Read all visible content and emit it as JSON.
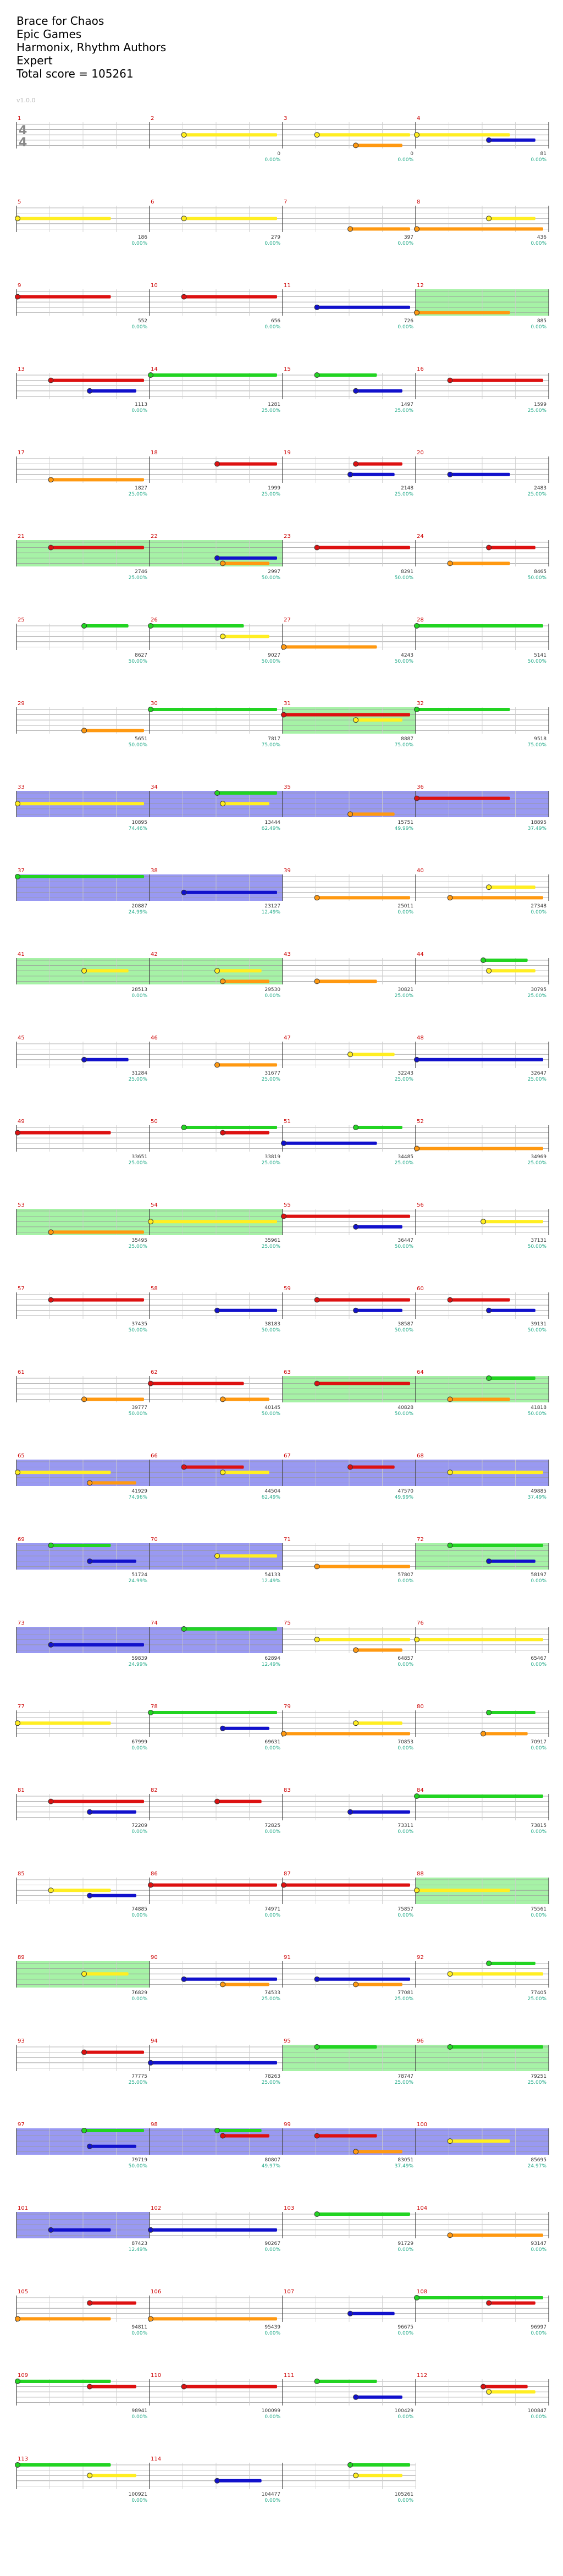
{
  "header": {
    "title": "Brace for Chaos",
    "artist": "Epic Games",
    "charter": "Harmonix, Rhythm Authors",
    "difficulty": "Expert",
    "total_score": "Total score = 105261"
  },
  "version": "v1.0.0",
  "time_signature": {
    "top": "4",
    "bottom": "4"
  },
  "colors": {
    "green": "#22d422",
    "red": "#dd1111",
    "yellow": "#ffee22",
    "blue": "#1111cc",
    "orange": "#ff9911",
    "od_phrase": "#88ee88",
    "solo": "#7777ee",
    "staff": "#999999",
    "measure_num": "#cc0000",
    "score": "#333333",
    "pct": "#22aa88"
  },
  "measures": [
    {
      "n": "1",
      "cnt": "",
      "score": "",
      "pct": "",
      "hi": null
    },
    {
      "n": "2",
      "cnt": "",
      "score": "0",
      "pct": "0.00%",
      "hi": null
    },
    {
      "n": "3",
      "cnt": "",
      "score": "0",
      "pct": "0.00%",
      "hi": null
    },
    {
      "n": "4",
      "cnt": "61",
      "score": "81",
      "pct": "0.00%",
      "hi": null
    },
    {
      "n": "5",
      "cnt": "",
      "score": "186",
      "pct": "0.00%",
      "hi": null
    },
    {
      "n": "6",
      "cnt": "",
      "score": "279",
      "pct": "0.00%",
      "hi": null
    },
    {
      "n": "7",
      "cnt": "",
      "score": "397",
      "pct": "0.00%",
      "hi": null
    },
    {
      "n": "8",
      "cnt": "",
      "score": "436",
      "pct": "0.00%",
      "hi": null
    },
    {
      "n": "9",
      "cnt": "",
      "score": "552",
      "pct": "0.00%",
      "hi": null
    },
    {
      "n": "10",
      "cnt": "",
      "score": "656",
      "pct": "0.00%",
      "hi": null
    },
    {
      "n": "11",
      "cnt": "",
      "score": "726",
      "pct": "0.00%",
      "hi": null
    },
    {
      "n": "12",
      "cnt": "",
      "score": "885",
      "pct": "0.00%",
      "hi": "od"
    },
    {
      "n": "13",
      "cnt": "",
      "score": "1113",
      "pct": "0.00%",
      "hi": null
    },
    {
      "n": "14",
      "cnt": "",
      "score": "1281",
      "pct": "25.00%",
      "hi": null
    },
    {
      "n": "15",
      "cnt": "",
      "score": "1497",
      "pct": "25.00%",
      "hi": null
    },
    {
      "n": "16",
      "cnt": "",
      "score": "1599",
      "pct": "25.00%",
      "hi": null
    },
    {
      "n": "17",
      "cnt": "",
      "score": "1827",
      "pct": "25.00%",
      "hi": null
    },
    {
      "n": "18",
      "cnt": "",
      "score": "1999",
      "pct": "25.00%",
      "hi": null
    },
    {
      "n": "19",
      "cnt": "",
      "score": "2148",
      "pct": "25.00%",
      "hi": null
    },
    {
      "n": "20",
      "cnt": "",
      "score": "2483",
      "pct": "25.00%",
      "hi": null
    },
    {
      "n": "21",
      "cnt": "",
      "score": "2746",
      "pct": "25.00%",
      "hi": "od"
    },
    {
      "n": "22",
      "cnt": "",
      "score": "2997",
      "pct": "50.00%",
      "hi": "od"
    },
    {
      "n": "23",
      "cnt": "",
      "score": "8291",
      "pct": "50.00%",
      "hi": null
    },
    {
      "n": "24",
      "cnt": "",
      "score": "8465",
      "pct": "50.00%",
      "hi": null
    },
    {
      "n": "25",
      "cnt": "",
      "score": "8627",
      "pct": "50.00%",
      "hi": null
    },
    {
      "n": "26",
      "cnt": "",
      "score": "9027",
      "pct": "50.00%",
      "hi": null
    },
    {
      "n": "27",
      "cnt": "",
      "score": "4243",
      "pct": "50.00%",
      "hi": null
    },
    {
      "n": "28",
      "cnt": "",
      "score": "5141",
      "pct": "50.00%",
      "hi": null
    },
    {
      "n": "29",
      "cnt": "",
      "score": "5651",
      "pct": "50.00%",
      "hi": null
    },
    {
      "n": "30",
      "cnt": "",
      "score": "7817",
      "pct": "75.00%",
      "hi": null
    },
    {
      "n": "31",
      "cnt": "",
      "score": "8887",
      "pct": "75.00%",
      "hi": "od"
    },
    {
      "n": "32",
      "cnt": "",
      "score": "9518",
      "pct": "75.00%",
      "hi": null
    },
    {
      "n": "33",
      "cnt": "",
      "score": "10895",
      "pct": "74.46%",
      "hi": "solo"
    },
    {
      "n": "34",
      "cnt": "",
      "score": "13444",
      "pct": "62.49%",
      "hi": "solo"
    },
    {
      "n": "35",
      "cnt": "",
      "score": "15751",
      "pct": "49.99%",
      "hi": "solo"
    },
    {
      "n": "36",
      "cnt": "",
      "score": "18895",
      "pct": "37.49%",
      "hi": "solo"
    },
    {
      "n": "37",
      "cnt": "",
      "score": "20887",
      "pct": "24.99%",
      "hi": "solo"
    },
    {
      "n": "38",
      "cnt": "",
      "score": "23127",
      "pct": "12.49%",
      "hi": "solo"
    },
    {
      "n": "39",
      "cnt": "",
      "score": "25011",
      "pct": "0.00%",
      "hi": null
    },
    {
      "n": "40",
      "cnt": "",
      "score": "27348",
      "pct": "0.00%",
      "hi": null
    },
    {
      "n": "41",
      "cnt": "",
      "score": "28513",
      "pct": "0.00%",
      "hi": "od"
    },
    {
      "n": "42",
      "cnt": "",
      "score": "29530",
      "pct": "0.00%",
      "hi": "od"
    },
    {
      "n": "43",
      "cnt": "",
      "score": "30821",
      "pct": "25.00%",
      "hi": null
    },
    {
      "n": "44",
      "cnt": "",
      "score": "30795",
      "pct": "25.00%",
      "hi": null
    },
    {
      "n": "45",
      "cnt": "",
      "score": "31284",
      "pct": "25.00%",
      "hi": null
    },
    {
      "n": "46",
      "cnt": "",
      "score": "31677",
      "pct": "25.00%",
      "hi": null
    },
    {
      "n": "47",
      "cnt": "",
      "score": "32243",
      "pct": "25.00%",
      "hi": null
    },
    {
      "n": "48",
      "cnt": "",
      "score": "32647",
      "pct": "25.00%",
      "hi": null
    },
    {
      "n": "49",
      "cnt": "",
      "score": "33651",
      "pct": "25.00%",
      "hi": null
    },
    {
      "n": "50",
      "cnt": "",
      "score": "33819",
      "pct": "25.00%",
      "hi": null
    },
    {
      "n": "51",
      "cnt": "",
      "score": "34485",
      "pct": "25.00%",
      "hi": null
    },
    {
      "n": "52",
      "cnt": "",
      "score": "34969",
      "pct": "25.00%",
      "hi": null
    },
    {
      "n": "53",
      "cnt": "",
      "score": "35495",
      "pct": "25.00%",
      "hi": "od"
    },
    {
      "n": "54",
      "cnt": "",
      "score": "35961",
      "pct": "25.00%",
      "hi": "od"
    },
    {
      "n": "55",
      "cnt": "",
      "score": "36447",
      "pct": "50.00%",
      "hi": null
    },
    {
      "n": "56",
      "cnt": "",
      "score": "37131",
      "pct": "50.00%",
      "hi": null
    },
    {
      "n": "57",
      "cnt": "",
      "score": "37435",
      "pct": "50.00%",
      "hi": null
    },
    {
      "n": "58",
      "cnt": "",
      "score": "38183",
      "pct": "50.00%",
      "hi": null
    },
    {
      "n": "59",
      "cnt": "",
      "score": "38587",
      "pct": "50.00%",
      "hi": null
    },
    {
      "n": "60",
      "cnt": "",
      "score": "39131",
      "pct": "50.00%",
      "hi": null
    },
    {
      "n": "61",
      "cnt": "",
      "score": "39777",
      "pct": "50.00%",
      "hi": null
    },
    {
      "n": "62",
      "cnt": "",
      "score": "40145",
      "pct": "50.00%",
      "hi": null
    },
    {
      "n": "63",
      "cnt": "",
      "score": "40828",
      "pct": "50.00%",
      "hi": "od"
    },
    {
      "n": "64",
      "cnt": "",
      "score": "41818",
      "pct": "50.00%",
      "hi": "od"
    },
    {
      "n": "65",
      "cnt": "",
      "score": "41929",
      "pct": "74.96%",
      "hi": "solo"
    },
    {
      "n": "66",
      "cnt": "",
      "score": "44504",
      "pct": "62.49%",
      "hi": "solo"
    },
    {
      "n": "67",
      "cnt": "",
      "score": "47570",
      "pct": "49.99%",
      "hi": "solo"
    },
    {
      "n": "68",
      "cnt": "",
      "score": "49885",
      "pct": "37.49%",
      "hi": "solo"
    },
    {
      "n": "69",
      "cnt": "",
      "score": "51724",
      "pct": "24.99%",
      "hi": "solo"
    },
    {
      "n": "70",
      "cnt": "",
      "score": "54133",
      "pct": "12.49%",
      "hi": "solo"
    },
    {
      "n": "71",
      "cnt": "",
      "score": "57807",
      "pct": "0.00%",
      "hi": null
    },
    {
      "n": "72",
      "cnt": "",
      "score": "58197",
      "pct": "0.00%",
      "hi": "od"
    },
    {
      "n": "73",
      "cnt": "",
      "score": "59839",
      "pct": "24.99%",
      "hi": "solo"
    },
    {
      "n": "74",
      "cnt": "",
      "score": "62894",
      "pct": "12.49%",
      "hi": "solo"
    },
    {
      "n": "75",
      "cnt": "",
      "score": "64857",
      "pct": "0.00%",
      "hi": null
    },
    {
      "n": "76",
      "cnt": "",
      "score": "65467",
      "pct": "0.00%",
      "hi": null
    },
    {
      "n": "77",
      "cnt": "",
      "score": "67999",
      "pct": "0.00%",
      "hi": null
    },
    {
      "n": "78",
      "cnt": "",
      "score": "69631",
      "pct": "0.00%",
      "hi": null
    },
    {
      "n": "79",
      "cnt": "",
      "score": "70853",
      "pct": "0.00%",
      "hi": null
    },
    {
      "n": "80",
      "cnt": "",
      "score": "70917",
      "pct": "0.00%",
      "hi": null
    },
    {
      "n": "81",
      "cnt": "",
      "score": "72209",
      "pct": "0.00%",
      "hi": null
    },
    {
      "n": "82",
      "cnt": "",
      "score": "72825",
      "pct": "0.00%",
      "hi": null
    },
    {
      "n": "83",
      "cnt": "",
      "score": "73311",
      "pct": "0.00%",
      "hi": null
    },
    {
      "n": "84",
      "cnt": "",
      "score": "73815",
      "pct": "0.00%",
      "hi": null
    },
    {
      "n": "85",
      "cnt": "",
      "score": "74885",
      "pct": "0.00%",
      "hi": null
    },
    {
      "n": "86",
      "cnt": "",
      "score": "74971",
      "pct": "0.00%",
      "hi": null
    },
    {
      "n": "87",
      "cnt": "",
      "score": "75857",
      "pct": "0.00%",
      "hi": null
    },
    {
      "n": "88",
      "cnt": "",
      "score": "75561",
      "pct": "0.00%",
      "hi": "od"
    },
    {
      "n": "89",
      "cnt": "",
      "score": "76829",
      "pct": "0.00%",
      "hi": "od"
    },
    {
      "n": "90",
      "cnt": "",
      "score": "74533",
      "pct": "25.00%",
      "hi": null
    },
    {
      "n": "91",
      "cnt": "",
      "score": "77081",
      "pct": "25.00%",
      "hi": null
    },
    {
      "n": "92",
      "cnt": "",
      "score": "77405",
      "pct": "25.00%",
      "hi": null
    },
    {
      "n": "93",
      "cnt": "",
      "score": "77775",
      "pct": "25.00%",
      "hi": null
    },
    {
      "n": "94",
      "cnt": "",
      "score": "78263",
      "pct": "25.00%",
      "hi": null
    },
    {
      "n": "95",
      "cnt": "",
      "score": "78747",
      "pct": "25.00%",
      "hi": "od"
    },
    {
      "n": "96",
      "cnt": "",
      "score": "79251",
      "pct": "25.00%",
      "hi": "od"
    },
    {
      "n": "97",
      "cnt": "",
      "score": "79719",
      "pct": "50.00%",
      "hi": "solo"
    },
    {
      "n": "98",
      "cnt": "",
      "score": "80807",
      "pct": "49.97%",
      "hi": "solo"
    },
    {
      "n": "99",
      "cnt": "",
      "score": "83051",
      "pct": "37.49%",
      "hi": "solo"
    },
    {
      "n": "100",
      "cnt": "",
      "score": "85695",
      "pct": "24.97%",
      "hi": "solo"
    },
    {
      "n": "101",
      "cnt": "",
      "score": "87423",
      "pct": "12.49%",
      "hi": "solo"
    },
    {
      "n": "102",
      "cnt": "",
      "score": "90267",
      "pct": "0.00%",
      "hi": null
    },
    {
      "n": "103",
      "cnt": "",
      "score": "91729",
      "pct": "0.00%",
      "hi": null
    },
    {
      "n": "104",
      "cnt": "",
      "score": "93147",
      "pct": "0.00%",
      "hi": null
    },
    {
      "n": "105",
      "cnt": "",
      "score": "94811",
      "pct": "0.00%",
      "hi": null
    },
    {
      "n": "106",
      "cnt": "",
      "score": "95439",
      "pct": "0.00%",
      "hi": null
    },
    {
      "n": "107",
      "cnt": "",
      "score": "96675",
      "pct": "0.00%",
      "hi": null
    },
    {
      "n": "108",
      "cnt": "",
      "score": "96997",
      "pct": "0.00%",
      "hi": null
    },
    {
      "n": "109",
      "cnt": "",
      "score": "98941",
      "pct": "0.00%",
      "hi": null
    },
    {
      "n": "110",
      "cnt": "",
      "score": "100099",
      "pct": "0.00%",
      "hi": null
    },
    {
      "n": "111",
      "cnt": "",
      "score": "100429",
      "pct": "0.00%",
      "hi": null
    },
    {
      "n": "112",
      "cnt": "",
      "score": "100847",
      "pct": "0.00%",
      "hi": null
    },
    {
      "n": "113",
      "cnt": "",
      "score": "100921",
      "pct": "0.00%",
      "hi": null
    },
    {
      "n": "114",
      "cnt": "",
      "score": "104477",
      "pct": "0.00%",
      "hi": null
    },
    {
      "n": "",
      "cnt": "",
      "score": "105261",
      "pct": "0.00%",
      "hi": null
    }
  ]
}
